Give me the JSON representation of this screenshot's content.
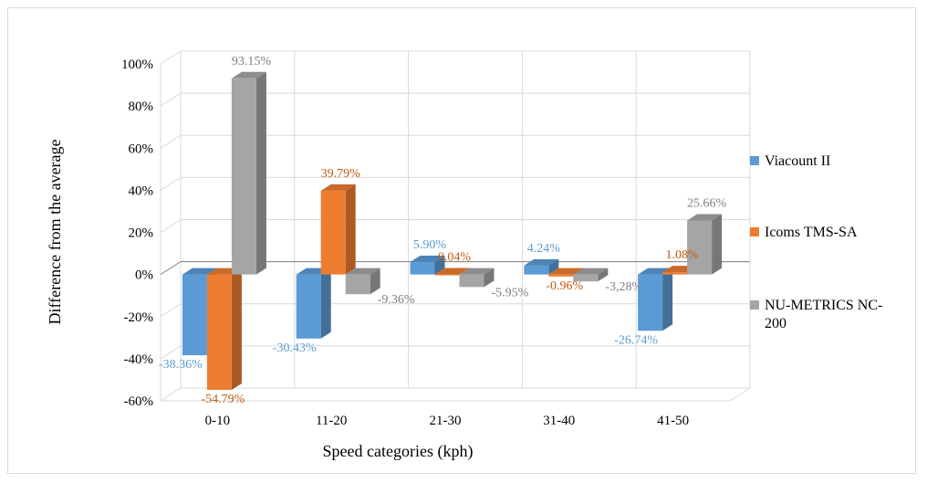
{
  "chart_data": {
    "type": "bar",
    "title": "",
    "xlabel": "Speed categories (kph)",
    "ylabel": "Difference from the average",
    "ylim": [
      -60,
      100
    ],
    "y_ticks": [
      "100%",
      "80%",
      "60%",
      "40%",
      "20%",
      "0%",
      "-20%",
      "-40%",
      "-60%"
    ],
    "grid": true,
    "legend_position": "right",
    "categories": [
      "0-10",
      "11-20",
      "21-30",
      "31-40",
      "41-50"
    ],
    "series": [
      {
        "name": "Viacount II",
        "color": "#5b9bd5",
        "label_color": "#5b9bd5",
        "values": [
          -38.36,
          -30.43,
          5.9,
          4.24,
          -26.74
        ],
        "labels": [
          "-38.36%",
          "-30.43%",
          "5.90%",
          "4.24%",
          "-26.74%"
        ]
      },
      {
        "name": "Icoms TMS-SA",
        "color": "#ed7d31",
        "label_color": "#c55a11",
        "values": [
          -54.79,
          39.79,
          0.04,
          -0.96,
          1.08
        ],
        "labels": [
          "-54.79%",
          "39.79%",
          "0.04%",
          "-0.96%",
          "1.08%"
        ]
      },
      {
        "name": "NU-METRICS NC-200",
        "legend_lines": [
          "NU-METRICS NC-",
          "200"
        ],
        "color": "#a5a5a5",
        "label_color": "#7f7f7f",
        "values": [
          93.15,
          -9.36,
          -5.95,
          -3.28,
          25.66
        ],
        "labels": [
          "93.15%",
          "-9.36%",
          "-5.95%",
          "-3,28%",
          "25.66%"
        ]
      }
    ]
  }
}
